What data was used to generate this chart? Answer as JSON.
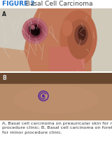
{
  "title_bold": "FIGURE 2",
  "title_regular": " Basal Cell Carcinoma",
  "title_color_bold": "#1a6fcc",
  "title_color_regular": "#444444",
  "title_fontsize": 6.5,
  "label_A": "A",
  "label_B": "B",
  "label_fontsize": 5.5,
  "label_color_A": "#222222",
  "label_color_B": "#dddddd",
  "caption": "A, Basal cell carcinoma on preauricular skin for minor\nprocedure clinic; B, Basal cell carcinoma on forehead\nfor minor procedure clinic.",
  "caption_fontsize": 4.6,
  "caption_color": "#333333",
  "bg_color": "#ffffff",
  "figure_width": 1.6,
  "figure_height": 2.2,
  "dpi": 100
}
